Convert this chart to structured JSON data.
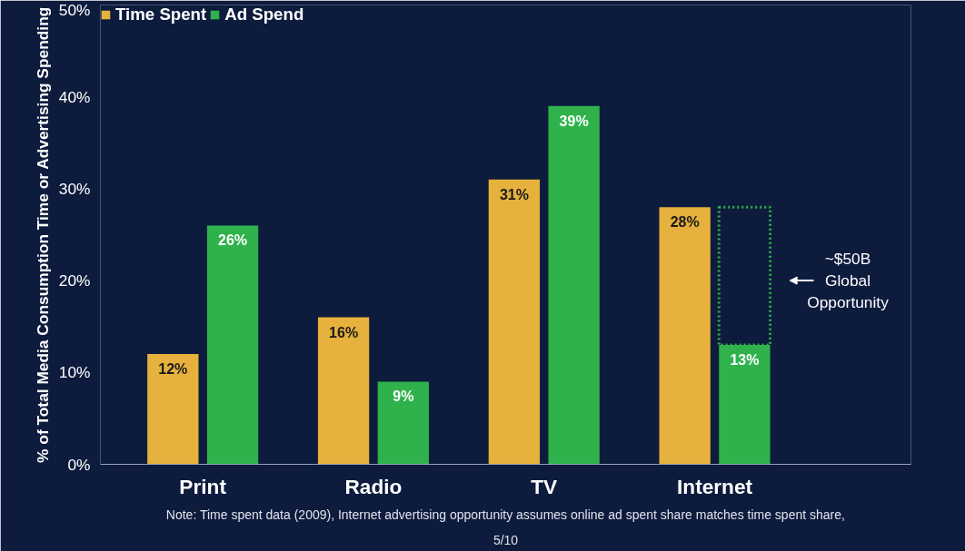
{
  "chart_data": {
    "type": "bar",
    "ylabel": "% of Total Media Consumption Time or Advertising Spending",
    "categories": [
      "Print",
      "Radio",
      "TV",
      "Internet"
    ],
    "series": [
      {
        "name": "Time Spent",
        "color": "#e6b13c",
        "values": [
          12,
          16,
          31,
          28
        ],
        "value_labels": [
          "12%",
          "16%",
          "31%",
          "28%"
        ]
      },
      {
        "name": "Ad Spend",
        "color": "#2fb24c",
        "values": [
          26,
          9,
          39,
          13
        ],
        "value_labels": [
          "26%",
          "9%",
          "39%",
          "13%"
        ]
      },
      {
        "color": "#2fb24c",
        "values": [
          null,
          null,
          null,
          15
        ],
        "base": [
          null,
          null,
          null,
          13
        ],
        "line_style": "dotted"
      }
    ],
    "ylim": [
      0,
      50
    ],
    "yticks": [
      {
        "value": 0,
        "label": "0%"
      },
      {
        "value": 10,
        "label": "10%"
      },
      {
        "value": 20,
        "label": "20%"
      },
      {
        "value": 30,
        "label": "30%"
      },
      {
        "value": 40,
        "label": "40%"
      },
      {
        "value": 50,
        "label": "50%"
      }
    ],
    "grid": false,
    "legend": "top left",
    "annotations": [
      "~$50B Global Opportunity",
      "Note: Time spent data (2009), Internet advertising opportunity assumes online ad spent share matches time spent share, 5/10"
    ]
  }
}
